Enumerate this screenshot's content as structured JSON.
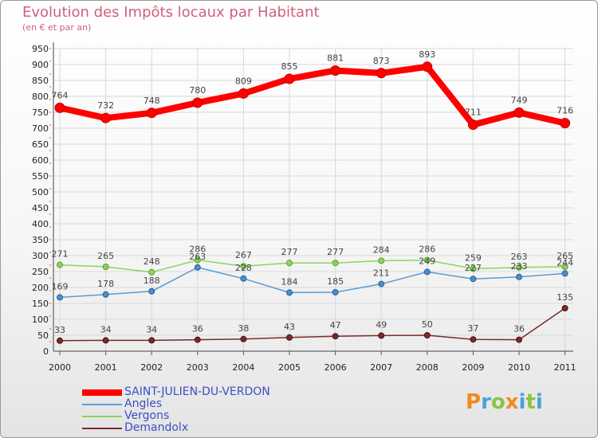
{
  "logo": {
    "letters": [
      "P",
      "r",
      "o",
      "x",
      "i",
      "t",
      "i"
    ],
    "colors": [
      "#f08a1e",
      "#4aa0d8",
      "#8ac440",
      "#f08a1e",
      "#4aa0d8",
      "#8ac440",
      "#4aa0d8"
    ]
  },
  "chart_data": {
    "type": "line",
    "title": "Evolution des Impôts locaux par Habitant",
    "subtitle": "(en € et par an)",
    "xlabel": "",
    "ylabel": "",
    "x": [
      "2000",
      "2001",
      "2002",
      "2003",
      "2004",
      "2005",
      "2006",
      "2007",
      "2008",
      "2009",
      "2010",
      "2011"
    ],
    "ylim": [
      0,
      950
    ],
    "yticks": [
      0,
      50,
      100,
      150,
      200,
      250,
      300,
      350,
      400,
      450,
      500,
      550,
      600,
      650,
      700,
      750,
      800,
      850,
      900,
      950
    ],
    "grid": true,
    "legend_position": "bottom-left",
    "series": [
      {
        "name": "SAINT-JULIEN-DU-VERDON",
        "color": "#ff0000",
        "values": [
          764,
          732,
          748,
          780,
          809,
          855,
          881,
          873,
          893,
          711,
          749,
          716
        ]
      },
      {
        "name": "Angles",
        "color": "#5b9bd5",
        "values": [
          169,
          178,
          188,
          263,
          228,
          184,
          185,
          211,
          249,
          227,
          233,
          244
        ]
      },
      {
        "name": "Vergons",
        "color": "#8dd35f",
        "values": [
          271,
          265,
          248,
          286,
          267,
          277,
          277,
          284,
          286,
          259,
          263,
          265
        ]
      },
      {
        "name": "Demandolx",
        "color": "#7a2a2a",
        "values": [
          33,
          34,
          34,
          36,
          38,
          43,
          47,
          49,
          50,
          37,
          36,
          135
        ]
      }
    ]
  }
}
